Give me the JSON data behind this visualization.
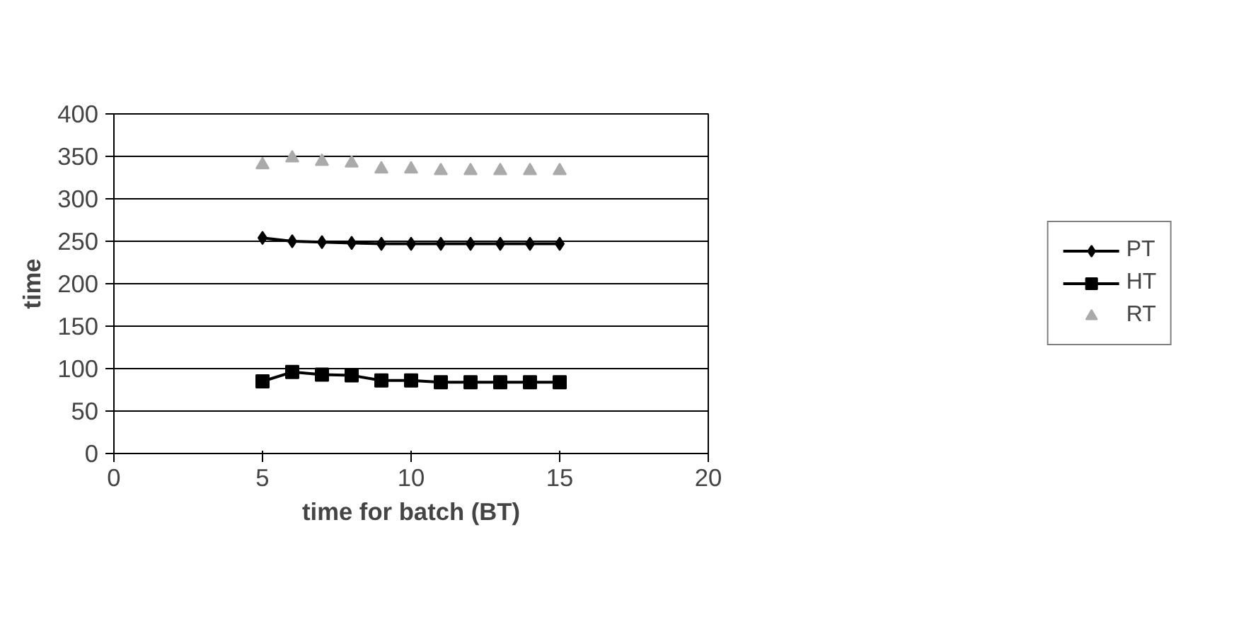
{
  "chart_data": {
    "type": "line",
    "xlabel": "time for batch (BT)",
    "ylabel": "time",
    "x": [
      5,
      6,
      7,
      8,
      9,
      10,
      11,
      12,
      13,
      14,
      15
    ],
    "series": [
      {
        "name": "PT",
        "color": "#000000",
        "marker": "diamond",
        "values": [
          254,
          250,
          249,
          248,
          247,
          247,
          247,
          247,
          247,
          247,
          247
        ]
      },
      {
        "name": "HT",
        "color": "#000000",
        "marker": "square",
        "values": [
          85,
          96,
          93,
          92,
          86,
          86,
          84,
          84,
          84,
          84,
          84
        ]
      },
      {
        "name": "RT",
        "type": "scatter",
        "color": "#aaaaaa",
        "marker": "triangle",
        "values": [
          340,
          348,
          344,
          342,
          335,
          335,
          333,
          333,
          333,
          333,
          333
        ]
      }
    ],
    "xlim": [
      0,
      20
    ],
    "xticks": [
      0,
      5,
      10,
      15,
      20
    ],
    "ylim": [
      0,
      400
    ],
    "yticks": [
      0,
      50,
      100,
      150,
      200,
      250,
      300,
      350,
      400
    ],
    "grid": "y",
    "legend": "right"
  }
}
